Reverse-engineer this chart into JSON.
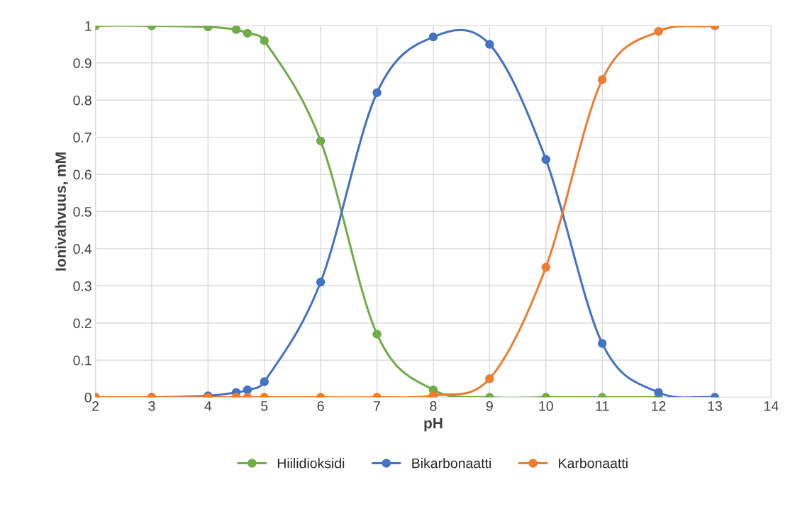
{
  "chart_data": {
    "type": "line",
    "xlabel": "pH",
    "ylabel": "Ionivahvuus, mM",
    "xlim": [
      2,
      14
    ],
    "xticks": [
      2,
      3,
      4,
      5,
      6,
      7,
      8,
      9,
      10,
      11,
      12,
      13,
      14
    ],
    "ylim": [
      0,
      1
    ],
    "yticks": [
      0,
      0.1,
      0.2,
      0.3,
      0.4,
      0.5,
      0.6,
      0.7,
      0.8,
      0.9,
      1
    ],
    "grid": true,
    "legend": "bottom",
    "marker": "circle",
    "line_style": "solid",
    "series": [
      {
        "name": "Hiilidioksidi",
        "color": "#70ad47",
        "x": [
          2,
          3,
          4,
          4.5,
          4.7,
          5,
          6,
          7,
          8,
          9,
          10,
          11,
          12
        ],
        "values": [
          1,
          1,
          0.997,
          0.99,
          0.98,
          0.96,
          0.69,
          0.17,
          0.02,
          0,
          0,
          0,
          0
        ]
      },
      {
        "name": "Bikarbonaatti",
        "color": "#4472c4",
        "x": [
          2,
          3,
          4,
          4.5,
          4.7,
          5,
          6,
          7,
          8,
          9,
          10,
          11,
          12,
          13
        ],
        "values": [
          0,
          0,
          0.004,
          0.013,
          0.02,
          0.042,
          0.31,
          0.82,
          0.97,
          0.95,
          0.64,
          0.145,
          0.013,
          0
        ]
      },
      {
        "name": "Karbonaatti",
        "color": "#ed7d31",
        "x": [
          2,
          3,
          4,
          4.5,
          4.7,
          5,
          6,
          7,
          8,
          9,
          10,
          11,
          12,
          13
        ],
        "values": [
          0,
          0,
          0,
          0,
          0,
          0,
          0,
          0,
          0.005,
          0.05,
          0.35,
          0.855,
          0.985,
          1
        ]
      }
    ]
  }
}
